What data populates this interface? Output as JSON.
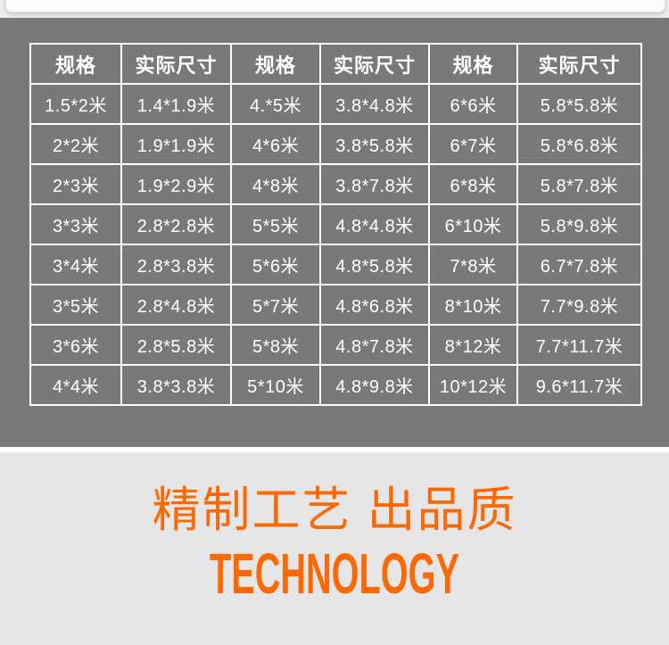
{
  "colors": {
    "panel_gray": "#797979",
    "table_border": "#ffffff",
    "cell_text": "#ffffff",
    "section_background": "#e6e6e6",
    "accent_orange": "#fb6906"
  },
  "size_table": {
    "headers": [
      "规格",
      "实际尺寸",
      "规格",
      "实际尺寸",
      "规格",
      "实际尺寸"
    ],
    "rows": [
      [
        "1.5*2米",
        "1.4*1.9米",
        "4.*5米",
        "3.8*4.8米",
        "6*6米",
        "5.8*5.8米"
      ],
      [
        "2*2米",
        "1.9*1.9米",
        "4*6米",
        "3.8*5.8米",
        "6*7米",
        "5.8*6.8米"
      ],
      [
        "2*3米",
        "1.9*2.9米",
        "4*8米",
        "3.8*7.8米",
        "6*8米",
        "5.8*7.8米"
      ],
      [
        "3*3米",
        "2.8*2.8米",
        "5*5米",
        "4.8*4.8米",
        "6*10米",
        "5.8*9.8米"
      ],
      [
        "3*4米",
        "2.8*3.8米",
        "5*6米",
        "4.8*5.8米",
        "7*8米",
        "6.7*7.8米"
      ],
      [
        "3*5米",
        "2.8*4.8米",
        "5*7米",
        "4.8*6.8米",
        "8*10米",
        "7.7*9.8米"
      ],
      [
        "3*6米",
        "2.8*5.8米",
        "5*8米",
        "4.8*7.8米",
        "8*12米",
        "7.7*11.7米"
      ],
      [
        "4*4米",
        "3.8*3.8米",
        "5*10米",
        "4.8*9.8米",
        "10*12米",
        "9.6*11.7米"
      ]
    ]
  },
  "technology_section": {
    "title_cn": "精制工艺 出品质",
    "title_en": "TECHNOLOGY"
  }
}
